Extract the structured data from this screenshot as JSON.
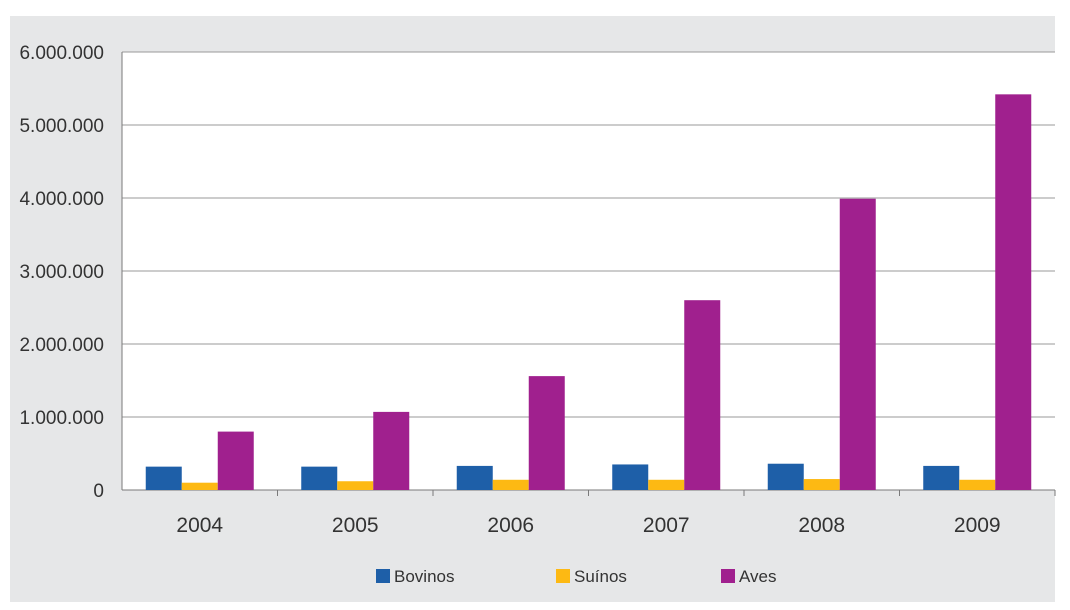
{
  "chart_data": {
    "type": "bar",
    "title": "",
    "xlabel": "",
    "ylabel": "",
    "categories": [
      "2004",
      "2005",
      "2006",
      "2007",
      "2008",
      "2009"
    ],
    "series": [
      {
        "name": "Bovinos",
        "color": "#1e5fa8",
        "values": [
          320000,
          320000,
          330000,
          350000,
          360000,
          330000
        ]
      },
      {
        "name": "Suínos",
        "color": "#fdb913",
        "values": [
          100000,
          120000,
          140000,
          140000,
          150000,
          140000
        ]
      },
      {
        "name": "Aves",
        "color": "#a0208e",
        "values": [
          800000,
          1070000,
          1560000,
          2600000,
          3990000,
          5420000
        ]
      }
    ],
    "ylim": [
      0,
      6000000
    ],
    "yticks": [
      {
        "value": 0,
        "label": "0"
      },
      {
        "value": 1000000,
        "label": "1.000.000"
      },
      {
        "value": 2000000,
        "label": "2.000.000"
      },
      {
        "value": 3000000,
        "label": "3.000.000"
      },
      {
        "value": 4000000,
        "label": "4.000.000"
      },
      {
        "value": 5000000,
        "label": "5.000.000"
      },
      {
        "value": 6000000,
        "label": "6.000.000"
      }
    ],
    "grid": true,
    "legend_position": "bottom",
    "background_color": "#e6e7e8",
    "plot_background_color": "#ffffff"
  }
}
